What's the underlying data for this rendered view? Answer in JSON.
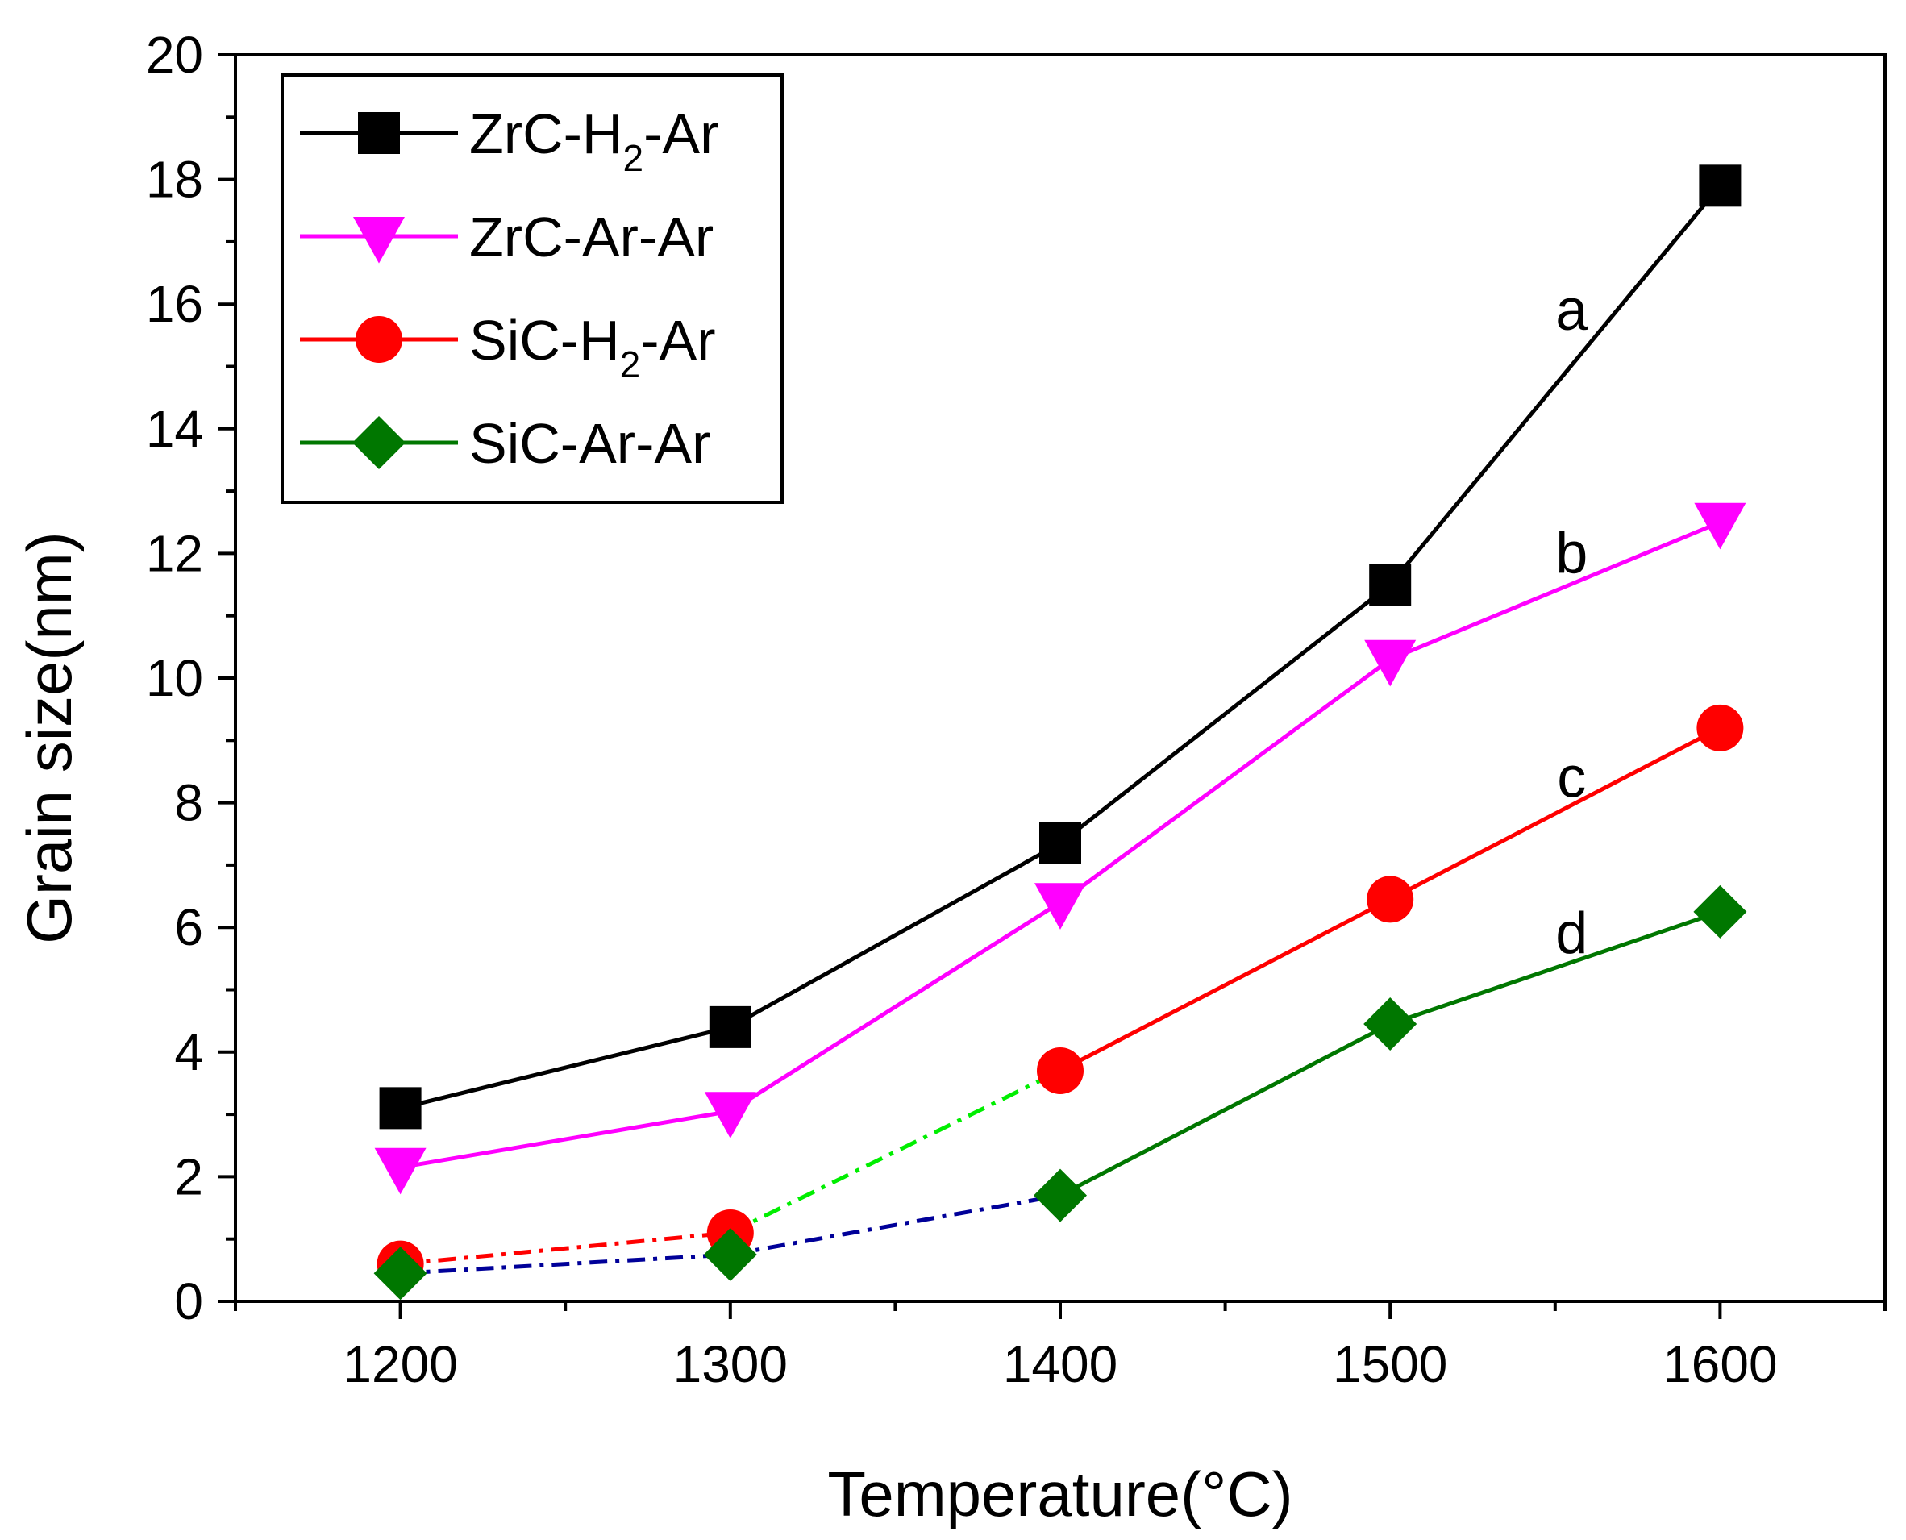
{
  "chart_data": {
    "type": "line",
    "title": "",
    "xlabel": "Temperature(°C)",
    "ylabel": "Grain size(nm)",
    "xlim": [
      1150,
      1650
    ],
    "ylim": [
      0,
      20
    ],
    "x_ticks": [
      1200,
      1300,
      1400,
      1500,
      1600
    ],
    "y_ticks": [
      0,
      2,
      4,
      6,
      8,
      10,
      12,
      14,
      16,
      18,
      20
    ],
    "grid": false,
    "legend_position": "top-left",
    "series": [
      {
        "name": "ZrC-H2-Ar",
        "legend_main": "ZrC-H",
        "legend_sub": "2",
        "legend_tail": "-Ar",
        "color": "#000000",
        "marker": "square",
        "x": [
          1200,
          1300,
          1400,
          1500,
          1600
        ],
        "y": [
          3.1,
          4.4,
          7.35,
          11.5,
          17.9
        ],
        "solid_from_index": 0,
        "dashed_color": ""
      },
      {
        "name": "ZrC-Ar-Ar",
        "legend_main": "ZrC-Ar-Ar",
        "legend_sub": "",
        "legend_tail": "",
        "color": "#ff00ff",
        "marker": "triangle-down",
        "x": [
          1200,
          1300,
          1400,
          1500,
          1600
        ],
        "y": [
          2.15,
          3.05,
          6.4,
          10.3,
          12.5
        ],
        "solid_from_index": 0,
        "dashed_color": ""
      },
      {
        "name": "SiC-H2-Ar",
        "legend_main": "SiC-H",
        "legend_sub": "2",
        "legend_tail": "-Ar",
        "color": "#ff0000",
        "marker": "circle",
        "x": [
          1200,
          1300,
          1400,
          1500,
          1600
        ],
        "y": [
          0.6,
          1.1,
          3.7,
          6.45,
          9.2
        ],
        "solid_from_index": 2,
        "dashed_segments": [
          {
            "from": 0,
            "to": 1,
            "color": "#ff0000"
          },
          {
            "from": 1,
            "to": 2,
            "color": "#00ee00"
          }
        ]
      },
      {
        "name": "SiC-Ar-Ar",
        "legend_main": "SiC-Ar-Ar",
        "legend_sub": "",
        "legend_tail": "",
        "color": "#007700",
        "marker": "diamond",
        "x": [
          1200,
          1300,
          1400,
          1500,
          1600
        ],
        "y": [
          0.45,
          0.75,
          1.7,
          4.45,
          6.25
        ],
        "solid_from_index": 2,
        "dashed_segments": [
          {
            "from": 0,
            "to": 1,
            "color": "#000099"
          },
          {
            "from": 1,
            "to": 2,
            "color": "#000099"
          }
        ]
      }
    ],
    "annotations": [
      {
        "text": "a",
        "x": 1555,
        "y": 15.9
      },
      {
        "text": "b",
        "x": 1555,
        "y": 12.0
      },
      {
        "text": "c",
        "x": 1555,
        "y": 8.4
      },
      {
        "text": "d",
        "x": 1555,
        "y": 5.9
      }
    ]
  }
}
